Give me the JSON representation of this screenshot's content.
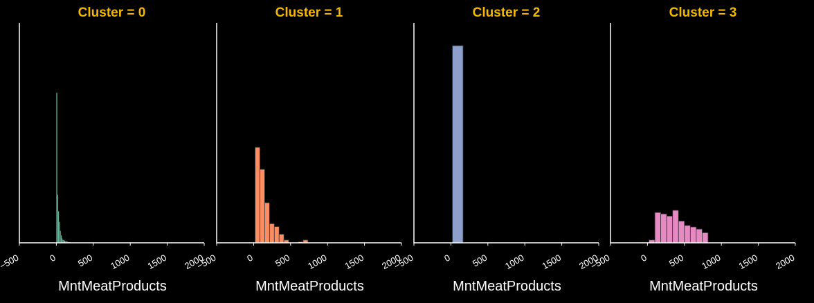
{
  "chart_data": {
    "type": "bar",
    "title_color": "#f5b800",
    "xlabel": "MntMeatProducts",
    "xlim": [
      -500,
      2000
    ],
    "xticks": [
      -500,
      0,
      500,
      1000,
      1500,
      2000
    ],
    "xtick_labels": [
      "−500",
      "0",
      "500",
      "1000",
      "1500",
      "2000"
    ],
    "yaxis_visible": false,
    "grid": false,
    "panels": [
      {
        "title": "Cluster = 0",
        "color": "#66c2a5",
        "bin_edges": [
          0,
          12,
          24,
          36,
          48,
          60,
          72,
          84,
          96,
          108,
          120,
          132,
          144,
          156,
          168,
          180,
          192,
          204
        ],
        "counts": [
          100,
          32,
          21,
          14,
          8,
          5,
          3,
          2,
          2,
          1.5,
          1,
          1,
          0.7,
          0.5,
          0.4,
          0.3,
          0.2
        ]
      },
      {
        "title": "Cluster = 1",
        "color": "#fc8d62",
        "bin_edges": [
          20,
          85,
          150,
          215,
          280,
          345,
          410,
          475,
          540,
          605,
          670,
          735,
          800
        ],
        "counts": [
          100,
          77,
          42,
          20,
          17,
          9,
          3,
          0,
          0,
          1,
          3,
          0
        ]
      },
      {
        "title": "Cluster = 2",
        "color": "#8da0cb",
        "bin_edges": [
          20,
          165
        ],
        "counts": [
          100
        ]
      },
      {
        "title": "Cluster = 3",
        "color": "#e78ac3",
        "bin_edges": [
          20,
          100,
          180,
          260,
          340,
          420,
          500,
          580,
          660,
          740,
          820,
          900,
          980
        ],
        "counts": [
          4,
          42,
          40,
          37,
          45,
          30,
          24,
          22,
          19,
          14,
          0,
          0
        ]
      }
    ]
  }
}
